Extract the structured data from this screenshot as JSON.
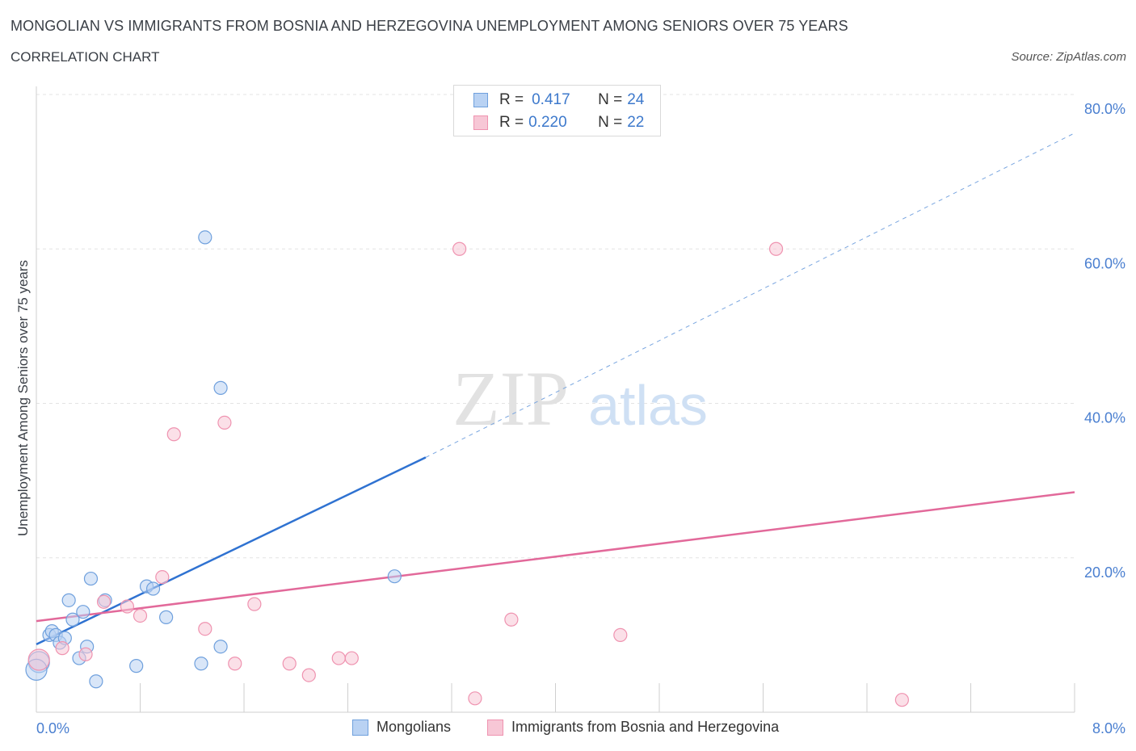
{
  "title": "MONGOLIAN VS IMMIGRANTS FROM BOSNIA AND HERZEGOVINA UNEMPLOYMENT AMONG SENIORS OVER 75 YEARS",
  "subtitle": "CORRELATION CHART",
  "source": "Source: ZipAtlas.com",
  "watermark": {
    "zip": "ZIP",
    "atlas": "atlas"
  },
  "legend": {
    "rows": [
      {
        "r_label": "R = ",
        "r_value": "0.417",
        "n_label": "N = ",
        "n_value": "24"
      },
      {
        "r_label": "R = ",
        "r_value": "0.220",
        "n_label": "N = ",
        "n_value": "22"
      }
    ]
  },
  "chart_data": {
    "type": "scatter",
    "title": "MONGOLIAN VS IMMIGRANTS FROM BOSNIA AND HERZEGOVINA UNEMPLOYMENT AMONG SENIORS OVER 75 YEARS",
    "xlabel": "",
    "ylabel": "Unemployment Among Seniors over 75 years",
    "xlim": [
      0,
      8
    ],
    "ylim": [
      0,
      80
    ],
    "x_tick_labels": [
      "0.0%",
      "8.0%"
    ],
    "y_ticks": [
      20,
      40,
      60,
      80
    ],
    "y_tick_labels": [
      "20.0%",
      "40.0%",
      "60.0%",
      "80.0%"
    ],
    "grid": true,
    "legend_position": "bottom",
    "series": [
      {
        "name": "Mongolians",
        "color": "#6fa0dd",
        "fill": "#b9d2f3",
        "points": [
          [
            0.02,
            6.5
          ],
          [
            0.1,
            10.0
          ],
          [
            0.12,
            10.5
          ],
          [
            0.15,
            10.0
          ],
          [
            0.18,
            9.0
          ],
          [
            0.22,
            9.6
          ],
          [
            0.25,
            14.5
          ],
          [
            0.28,
            12.0
          ],
          [
            0.33,
            7.0
          ],
          [
            0.36,
            13.0
          ],
          [
            0.39,
            8.5
          ],
          [
            0.42,
            17.3
          ],
          [
            0.46,
            4.0
          ],
          [
            0.53,
            14.5
          ],
          [
            0.77,
            6.0
          ],
          [
            0.85,
            16.3
          ],
          [
            0.9,
            16.0
          ],
          [
            1.0,
            12.3
          ],
          [
            1.27,
            6.3
          ],
          [
            1.3,
            61.5
          ],
          [
            1.42,
            8.5
          ],
          [
            1.42,
            42.0
          ],
          [
            2.76,
            17.6
          ],
          [
            0.0,
            5.5
          ]
        ],
        "trend": {
          "x0": 0.0,
          "y0": 8.8,
          "x1": 3.0,
          "y1": 33.0,
          "x_extend": 8.0,
          "y_extend": 75.0
        }
      },
      {
        "name": "Immigrants from Bosnia and Herzegovina",
        "color": "#ef93b0",
        "fill": "#f7c7d6",
        "points": [
          [
            0.02,
            6.8
          ],
          [
            0.2,
            8.3
          ],
          [
            0.38,
            7.5
          ],
          [
            0.52,
            14.3
          ],
          [
            0.7,
            13.7
          ],
          [
            0.8,
            12.5
          ],
          [
            0.97,
            17.5
          ],
          [
            1.06,
            36.0
          ],
          [
            1.3,
            10.8
          ],
          [
            1.45,
            37.5
          ],
          [
            1.53,
            6.3
          ],
          [
            1.68,
            14.0
          ],
          [
            1.95,
            6.3
          ],
          [
            2.1,
            4.8
          ],
          [
            2.33,
            7.0
          ],
          [
            2.43,
            7.0
          ],
          [
            3.26,
            60.0
          ],
          [
            3.38,
            1.8
          ],
          [
            3.66,
            12.0
          ],
          [
            4.5,
            10.0
          ],
          [
            5.7,
            60.0
          ],
          [
            6.67,
            1.6
          ]
        ],
        "trend": {
          "x0": 0.0,
          "y0": 11.8,
          "x1": 8.0,
          "y1": 28.5
        }
      }
    ]
  }
}
